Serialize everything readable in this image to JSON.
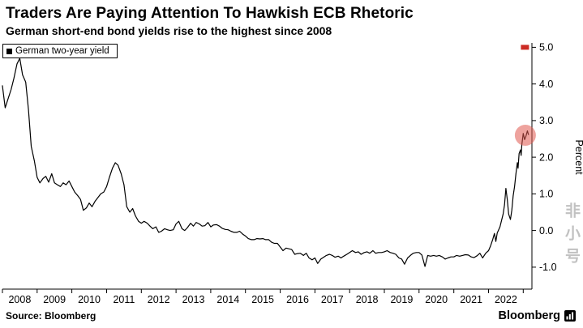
{
  "header": {
    "title": "Traders Are Paying Attention To Hawkish ECB Rhetoric",
    "subtitle": "German short-end bond yields rise to the highest since 2008"
  },
  "legend": {
    "label": "German two-year yield",
    "marker_color": "#000000"
  },
  "footer": {
    "source": "Source: Bloomberg",
    "brand": "Bloomberg"
  },
  "watermark": {
    "text": "非小号"
  },
  "chart_data": {
    "type": "line",
    "title": "Traders Are Paying Attention To Hawkish ECB Rhetoric",
    "subtitle": "German short-end bond yields rise to the highest since 2008",
    "xlabel": "",
    "ylabel": "Percent",
    "axis_side": "right",
    "grid": false,
    "legend_position": "top-left",
    "xlim": [
      2008.0,
      2023.25
    ],
    "ylim": [
      -1.6,
      5.12
    ],
    "y_ticks": [
      5.0,
      4.0,
      3.0,
      2.0,
      1.0,
      0.0,
      -1.0
    ],
    "x_tick_labels": [
      "2008",
      "2009",
      "2010",
      "2011",
      "2012",
      "2013",
      "2014",
      "2015",
      "2016",
      "2017",
      "2018",
      "2019",
      "2020",
      "2021",
      "2022"
    ],
    "line_color": "#000000",
    "highlight_circle": {
      "x": 2023.06,
      "y": 2.6,
      "radius": 13,
      "color": "#e0574f",
      "opacity": 0.55
    },
    "axis_top_marker": {
      "x": 2023.05,
      "y": 5.0,
      "color": "#cc2b24"
    },
    "series": [
      {
        "name": "German two-year yield",
        "points": [
          [
            2008.0,
            3.95
          ],
          [
            2008.08,
            3.35
          ],
          [
            2008.17,
            3.62
          ],
          [
            2008.25,
            3.85
          ],
          [
            2008.33,
            4.15
          ],
          [
            2008.42,
            4.55
          ],
          [
            2008.5,
            4.7
          ],
          [
            2008.58,
            4.25
          ],
          [
            2008.67,
            4.05
          ],
          [
            2008.75,
            3.3
          ],
          [
            2008.83,
            2.3
          ],
          [
            2008.92,
            1.9
          ],
          [
            2009.0,
            1.45
          ],
          [
            2009.08,
            1.3
          ],
          [
            2009.17,
            1.42
          ],
          [
            2009.25,
            1.48
          ],
          [
            2009.33,
            1.32
          ],
          [
            2009.42,
            1.55
          ],
          [
            2009.5,
            1.3
          ],
          [
            2009.58,
            1.25
          ],
          [
            2009.67,
            1.2
          ],
          [
            2009.75,
            1.3
          ],
          [
            2009.83,
            1.25
          ],
          [
            2009.92,
            1.35
          ],
          [
            2010.0,
            1.2
          ],
          [
            2010.08,
            1.05
          ],
          [
            2010.17,
            0.95
          ],
          [
            2010.25,
            0.85
          ],
          [
            2010.33,
            0.55
          ],
          [
            2010.42,
            0.62
          ],
          [
            2010.5,
            0.75
          ],
          [
            2010.58,
            0.65
          ],
          [
            2010.67,
            0.8
          ],
          [
            2010.75,
            0.9
          ],
          [
            2010.83,
            1.0
          ],
          [
            2010.92,
            1.05
          ],
          [
            2011.0,
            1.2
          ],
          [
            2011.08,
            1.45
          ],
          [
            2011.17,
            1.7
          ],
          [
            2011.25,
            1.85
          ],
          [
            2011.33,
            1.78
          ],
          [
            2011.42,
            1.55
          ],
          [
            2011.5,
            1.25
          ],
          [
            2011.58,
            0.65
          ],
          [
            2011.67,
            0.5
          ],
          [
            2011.75,
            0.6
          ],
          [
            2011.83,
            0.4
          ],
          [
            2011.92,
            0.25
          ],
          [
            2012.0,
            0.2
          ],
          [
            2012.08,
            0.25
          ],
          [
            2012.17,
            0.2
          ],
          [
            2012.25,
            0.12
          ],
          [
            2012.33,
            0.05
          ],
          [
            2012.42,
            0.1
          ],
          [
            2012.5,
            -0.05
          ],
          [
            2012.58,
            -0.02
          ],
          [
            2012.67,
            0.05
          ],
          [
            2012.75,
            0.02
          ],
          [
            2012.83,
            0.0
          ],
          [
            2012.92,
            0.02
          ],
          [
            2013.0,
            0.18
          ],
          [
            2013.08,
            0.25
          ],
          [
            2013.17,
            0.05
          ],
          [
            2013.25,
            0.0
          ],
          [
            2013.33,
            0.08
          ],
          [
            2013.42,
            0.2
          ],
          [
            2013.5,
            0.12
          ],
          [
            2013.58,
            0.22
          ],
          [
            2013.67,
            0.18
          ],
          [
            2013.75,
            0.12
          ],
          [
            2013.83,
            0.13
          ],
          [
            2013.92,
            0.22
          ],
          [
            2014.0,
            0.1
          ],
          [
            2014.08,
            0.15
          ],
          [
            2014.17,
            0.16
          ],
          [
            2014.25,
            0.12
          ],
          [
            2014.33,
            0.06
          ],
          [
            2014.42,
            0.03
          ],
          [
            2014.5,
            0.02
          ],
          [
            2014.58,
            -0.02
          ],
          [
            2014.67,
            -0.05
          ],
          [
            2014.75,
            -0.05
          ],
          [
            2014.83,
            -0.02
          ],
          [
            2014.92,
            -0.1
          ],
          [
            2015.0,
            -0.15
          ],
          [
            2015.08,
            -0.22
          ],
          [
            2015.17,
            -0.25
          ],
          [
            2015.25,
            -0.25
          ],
          [
            2015.33,
            -0.22
          ],
          [
            2015.42,
            -0.23
          ],
          [
            2015.5,
            -0.22
          ],
          [
            2015.58,
            -0.25
          ],
          [
            2015.67,
            -0.25
          ],
          [
            2015.75,
            -0.32
          ],
          [
            2015.83,
            -0.35
          ],
          [
            2015.92,
            -0.35
          ],
          [
            2016.0,
            -0.45
          ],
          [
            2016.08,
            -0.55
          ],
          [
            2016.17,
            -0.48
          ],
          [
            2016.25,
            -0.5
          ],
          [
            2016.33,
            -0.52
          ],
          [
            2016.42,
            -0.65
          ],
          [
            2016.5,
            -0.63
          ],
          [
            2016.58,
            -0.62
          ],
          [
            2016.67,
            -0.68
          ],
          [
            2016.75,
            -0.62
          ],
          [
            2016.83,
            -0.75
          ],
          [
            2016.92,
            -0.8
          ],
          [
            2017.0,
            -0.75
          ],
          [
            2017.08,
            -0.9
          ],
          [
            2017.17,
            -0.78
          ],
          [
            2017.25,
            -0.73
          ],
          [
            2017.33,
            -0.68
          ],
          [
            2017.42,
            -0.65
          ],
          [
            2017.5,
            -0.68
          ],
          [
            2017.58,
            -0.73
          ],
          [
            2017.67,
            -0.7
          ],
          [
            2017.75,
            -0.75
          ],
          [
            2017.83,
            -0.7
          ],
          [
            2017.92,
            -0.65
          ],
          [
            2018.0,
            -0.6
          ],
          [
            2018.08,
            -0.55
          ],
          [
            2018.17,
            -0.6
          ],
          [
            2018.25,
            -0.58
          ],
          [
            2018.33,
            -0.65
          ],
          [
            2018.42,
            -0.6
          ],
          [
            2018.5,
            -0.58
          ],
          [
            2018.58,
            -0.62
          ],
          [
            2018.67,
            -0.55
          ],
          [
            2018.75,
            -0.62
          ],
          [
            2018.83,
            -0.6
          ],
          [
            2018.92,
            -0.6
          ],
          [
            2019.0,
            -0.58
          ],
          [
            2019.08,
            -0.55
          ],
          [
            2019.17,
            -0.6
          ],
          [
            2019.25,
            -0.62
          ],
          [
            2019.33,
            -0.65
          ],
          [
            2019.42,
            -0.75
          ],
          [
            2019.5,
            -0.78
          ],
          [
            2019.58,
            -0.92
          ],
          [
            2019.67,
            -0.75
          ],
          [
            2019.75,
            -0.68
          ],
          [
            2019.83,
            -0.62
          ],
          [
            2019.92,
            -0.6
          ],
          [
            2020.0,
            -0.6
          ],
          [
            2020.08,
            -0.67
          ],
          [
            2020.17,
            -0.98
          ],
          [
            2020.25,
            -0.68
          ],
          [
            2020.33,
            -0.7
          ],
          [
            2020.42,
            -0.68
          ],
          [
            2020.5,
            -0.7
          ],
          [
            2020.58,
            -0.68
          ],
          [
            2020.67,
            -0.72
          ],
          [
            2020.75,
            -0.78
          ],
          [
            2020.83,
            -0.75
          ],
          [
            2020.92,
            -0.72
          ],
          [
            2021.0,
            -0.72
          ],
          [
            2021.08,
            -0.68
          ],
          [
            2021.17,
            -0.7
          ],
          [
            2021.25,
            -0.68
          ],
          [
            2021.33,
            -0.66
          ],
          [
            2021.42,
            -0.67
          ],
          [
            2021.5,
            -0.72
          ],
          [
            2021.58,
            -0.74
          ],
          [
            2021.67,
            -0.69
          ],
          [
            2021.75,
            -0.62
          ],
          [
            2021.83,
            -0.75
          ],
          [
            2021.92,
            -0.62
          ],
          [
            2022.0,
            -0.55
          ],
          [
            2022.06,
            -0.42
          ],
          [
            2022.12,
            -0.25
          ],
          [
            2022.17,
            -0.08
          ],
          [
            2022.21,
            -0.3
          ],
          [
            2022.25,
            -0.07
          ],
          [
            2022.33,
            0.1
          ],
          [
            2022.42,
            0.45
          ],
          [
            2022.46,
            0.7
          ],
          [
            2022.5,
            1.15
          ],
          [
            2022.54,
            0.85
          ],
          [
            2022.58,
            0.45
          ],
          [
            2022.63,
            0.3
          ],
          [
            2022.67,
            0.55
          ],
          [
            2022.71,
            0.95
          ],
          [
            2022.75,
            1.2
          ],
          [
            2022.79,
            1.55
          ],
          [
            2022.83,
            1.85
          ],
          [
            2022.85,
            1.7
          ],
          [
            2022.88,
            2.1
          ],
          [
            2022.92,
            2.2
          ],
          [
            2022.94,
            2.05
          ],
          [
            2022.96,
            2.35
          ],
          [
            2023.0,
            2.65
          ],
          [
            2023.04,
            2.48
          ],
          [
            2023.08,
            2.58
          ],
          [
            2023.12,
            2.72
          ],
          [
            2023.15,
            2.62
          ]
        ]
      }
    ]
  }
}
